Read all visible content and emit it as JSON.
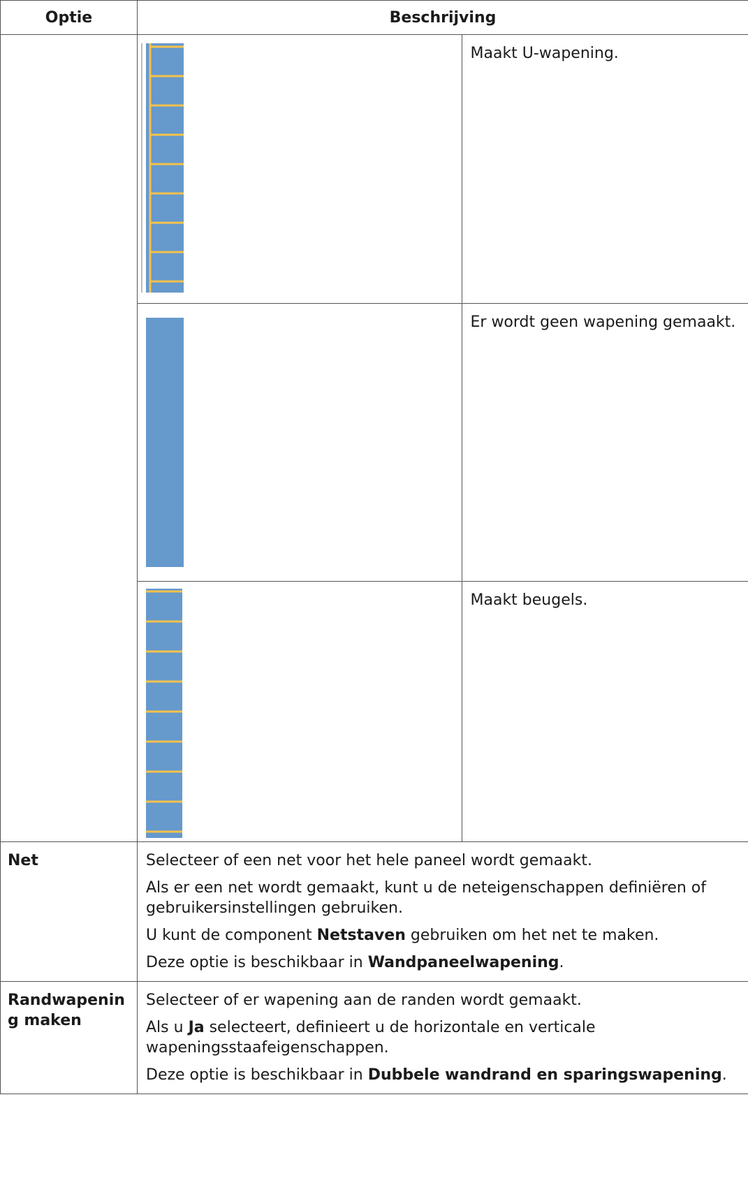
{
  "header": {
    "option": "Optie",
    "description": "Beschrijving"
  },
  "rows": [
    {
      "variants": [
        {
          "description": "Maakt U-wapening."
        },
        {
          "description": "Er wordt geen wapening gemaakt."
        },
        {
          "description": "Maakt beugels."
        }
      ]
    },
    {
      "option": "Net",
      "paragraphs": [
        [
          {
            "text": "Selecteer of een net voor het hele paneel wordt gemaakt."
          }
        ],
        [
          {
            "text": "Als er een net wordt gemaakt, kunt u de neteigenschappen definiëren of gebruikersinstellingen gebruiken."
          }
        ],
        [
          {
            "text": "U kunt de component "
          },
          {
            "text": "Netstaven",
            "bold": true
          },
          {
            "text": " gebruiken om het net te maken."
          }
        ],
        [
          {
            "text": "Deze optie is beschikbaar in "
          },
          {
            "text": "Wandpaneelwapening",
            "bold": true
          },
          {
            "text": "."
          }
        ]
      ]
    },
    {
      "option": "Randwapening maken",
      "paragraphs": [
        [
          {
            "text": "Selecteer of er wapening aan de randen wordt gemaakt."
          }
        ],
        [
          {
            "text": "Als u "
          },
          {
            "text": "Ja",
            "bold": true
          },
          {
            "text": " selecteert, definieert u de horizontale en verticale wapeningsstaafeigenschappen."
          }
        ],
        [
          {
            "text": "Deze optie is beschikbaar in "
          },
          {
            "text": "Dubbele wandrand en sparingswapening",
            "bold": true
          },
          {
            "text": "."
          }
        ]
      ]
    }
  ]
}
